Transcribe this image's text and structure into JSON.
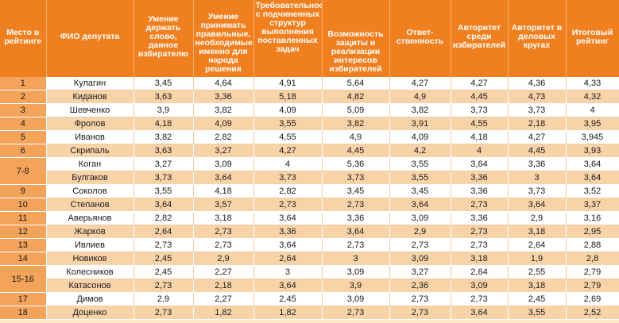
{
  "headers": [
    "Место в рейтинге",
    "ФИО депутата",
    "Умение держать слово, данное избирателю",
    "Умение принимать правильные, необходимые именно для народа решения",
    "Требовательность с подчиненных структур выполнения поставленных задач",
    "Возможность защиты и реализации интересов избирателей",
    "Ответ-ственность",
    "Авторитет среди избирателей",
    "Авторитет в деловых кругах",
    "Итоговый рейтинг"
  ],
  "rows": [
    {
      "rank": "1",
      "name": "Кулагин",
      "v": [
        "3,45",
        "4,64",
        "4,91",
        "5,64",
        "4,27",
        "4,27",
        "4,36",
        "4,33"
      ]
    },
    {
      "rank": "2",
      "name": "Киданов",
      "v": [
        "3,63",
        "3,36",
        "5,18",
        "4,82",
        "4,9",
        "4,45",
        "4,73",
        "4,32"
      ]
    },
    {
      "rank": "3",
      "name": "Шевченко",
      "v": [
        "3,9",
        "3,82",
        "4,09",
        "5,09",
        "3,82",
        "3,73",
        "3,73",
        "4"
      ]
    },
    {
      "rank": "4",
      "name": "Фролов",
      "v": [
        "4,18",
        "4,09",
        "3,55",
        "3,82",
        "3,91",
        "4,55",
        "2,18",
        "3,95"
      ]
    },
    {
      "rank": "5",
      "name": "Иванов",
      "v": [
        "3,82",
        "2,82",
        "4,55",
        "4,9",
        "4,09",
        "4,18",
        "4,27",
        "3,945"
      ]
    },
    {
      "rank": "6",
      "name": "Скрипаль",
      "v": [
        "3,63",
        "3,27",
        "4,27",
        "4,45",
        "4,2",
        "4",
        "4,45",
        "3,93"
      ]
    },
    {
      "rank": "7-8",
      "name": "Коган",
      "v": [
        "3,27",
        "3,09",
        "4",
        "5,36",
        "3,55",
        "3,64",
        "3,36",
        "3,64"
      ]
    },
    {
      "rank": "",
      "name": "Булгаков",
      "v": [
        "3,73",
        "3,64",
        "3,73",
        "3,73",
        "3,55",
        "3,36",
        "3",
        "3,64"
      ]
    },
    {
      "rank": "9",
      "name": "Соколов",
      "v": [
        "3,55",
        "4,18",
        "2,82",
        "3,45",
        "3,45",
        "3,36",
        "3,73",
        "3,52"
      ]
    },
    {
      "rank": "10",
      "name": "Степанов",
      "v": [
        "3,64",
        "3,57",
        "2,73",
        "2,73",
        "3,64",
        "2,73",
        "3,64",
        "3,37"
      ]
    },
    {
      "rank": "11",
      "name": "Аверьянов",
      "v": [
        "2,82",
        "3,18",
        "3,64",
        "3,36",
        "3,09",
        "3,36",
        "2,9",
        "3,16"
      ]
    },
    {
      "rank": "12",
      "name": "Жарков",
      "v": [
        "2,64",
        "2,73",
        "3,36",
        "3,64",
        "2,9",
        "2,73",
        "3,18",
        "2,95"
      ]
    },
    {
      "rank": "13",
      "name": "Ивлиев",
      "v": [
        "2,73",
        "2,73",
        "3,64",
        "2,73",
        "2,73",
        "2,73",
        "2,64",
        "2,88"
      ]
    },
    {
      "rank": "14",
      "name": "Новиков",
      "v": [
        "2,45",
        "2,9",
        "2,64",
        "3",
        "3,09",
        "3,18",
        "1,9",
        "2,8"
      ]
    },
    {
      "rank": "15-16",
      "name": "Колесников",
      "v": [
        "2,45",
        "2,27",
        "3",
        "3,09",
        "3,27",
        "2,64",
        "2,55",
        "2,79"
      ]
    },
    {
      "rank": "",
      "name": "Катасонов",
      "v": [
        "2,73",
        "2,18",
        "3,64",
        "3,9",
        "2,36",
        "3,09",
        "3,18",
        "2,79"
      ]
    },
    {
      "rank": "17",
      "name": "Димов",
      "v": [
        "2,9",
        "2,27",
        "2,45",
        "3,09",
        "2,73",
        "2,73",
        "2,45",
        "2,69"
      ]
    },
    {
      "rank": "18",
      "name": "Доценко",
      "v": [
        "2,73",
        "1,82",
        "1,82",
        "2,73",
        "2,73",
        "3,64",
        "3,55",
        "2,52"
      ]
    }
  ],
  "colors": {
    "header": "#f07f1f",
    "rank": "#f4a35a",
    "row_even": "#f9d3a8",
    "row_odd": "#ffffff"
  }
}
